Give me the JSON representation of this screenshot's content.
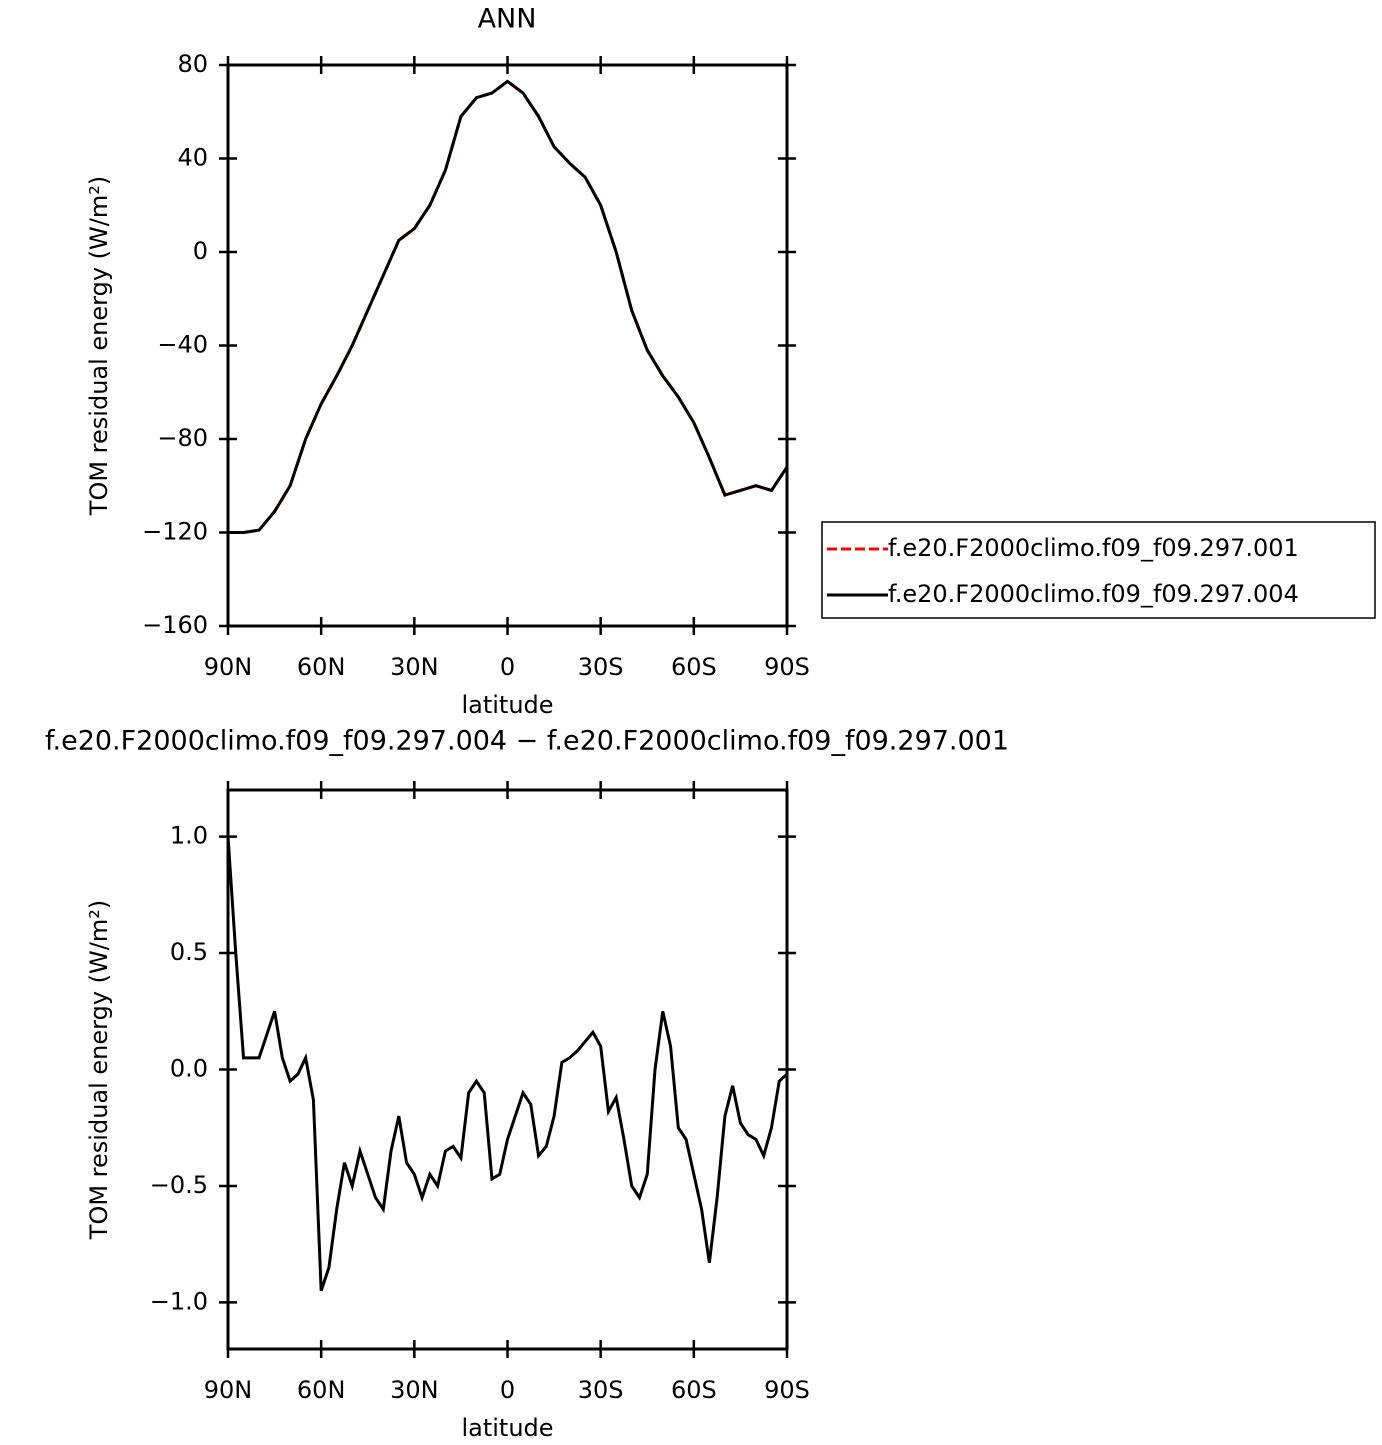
{
  "chart_data": [
    {
      "type": "line",
      "title": "ANN",
      "x_label": "latitude",
      "y_label": "TOM residual energy (W/m²)",
      "x": [
        90,
        85,
        80,
        75,
        70,
        65,
        60,
        55,
        50,
        45,
        40,
        35,
        30,
        25,
        20,
        15,
        10,
        5,
        0,
        -5,
        -10,
        -15,
        -20,
        -25,
        -30,
        -35,
        -40,
        -45,
        -50,
        -55,
        -60,
        -65,
        -70,
        -75,
        -80,
        -85,
        -90
      ],
      "series": [
        {
          "name": "f.e20.F2000climo.f09_f09.297.001",
          "color": "#ff0000",
          "dashed": true,
          "values": [
            -120,
            -120,
            -119,
            -111,
            -100,
            -80,
            -65,
            -53,
            -40,
            -25,
            -10,
            5,
            10,
            20,
            35,
            58,
            66,
            68,
            73,
            68,
            58,
            45,
            38,
            32,
            20,
            0,
            -25,
            -42,
            -53,
            -62,
            -73,
            -88,
            -104,
            -102,
            -100,
            -102,
            -92
          ]
        },
        {
          "name": "f.e20.F2000climo.f09_f09.297.004",
          "color": "#000000",
          "dashed": false,
          "values": [
            -120,
            -120,
            -119,
            -111,
            -100,
            -80,
            -65,
            -53,
            -40,
            -25,
            -10,
            5,
            10,
            20,
            35,
            58,
            66,
            68,
            73,
            68,
            58,
            45,
            38,
            32,
            20,
            0,
            -25,
            -42,
            -53,
            -62,
            -73,
            -88,
            -104,
            -102,
            -100,
            -102,
            -92
          ]
        }
      ],
      "xlim": [
        90,
        -90
      ],
      "xticks": [
        {
          "value": 90,
          "label": "90N"
        },
        {
          "value": 60,
          "label": "60N"
        },
        {
          "value": 30,
          "label": "30N"
        },
        0,
        {
          "value": -30,
          "label": "30S"
        },
        {
          "value": -60,
          "label": "60S"
        },
        {
          "value": -90,
          "label": "90S"
        }
      ],
      "ylim": [
        -160,
        80
      ],
      "yticks": [
        {
          "value": -160,
          "label": "−160"
        },
        {
          "value": -120,
          "label": "−120"
        },
        {
          "value": -80,
          "label": "−80"
        },
        {
          "value": -40,
          "label": "−40"
        },
        0,
        40,
        80
      ],
      "legend": "right"
    },
    {
      "type": "line",
      "title": "f.e20.F2000climo.f09_f09.297.004 − f.e20.F2000climo.f09_f09.297.001",
      "x_label": "latitude",
      "y_label": "TOM residual energy (W/m²)",
      "x": [
        90,
        87.5,
        85,
        82.5,
        80,
        77.5,
        75,
        72.5,
        70,
        67.5,
        65,
        62.5,
        60,
        57.5,
        55,
        52.5,
        50,
        47.5,
        45,
        42.5,
        40,
        37.5,
        35,
        32.5,
        30,
        27.5,
        25,
        22.5,
        20,
        17.5,
        15,
        12.5,
        10,
        7.5,
        5,
        2.5,
        0,
        -2.5,
        -5,
        -7.5,
        -10,
        -12.5,
        -15,
        -17.5,
        -20,
        -22.5,
        -25,
        -27.5,
        -30,
        -32.5,
        -35,
        -37.5,
        -40,
        -42.5,
        -45,
        -47.5,
        -50,
        -52.5,
        -55,
        -57.5,
        -60,
        -62.5,
        -65,
        -67.5,
        -70,
        -72.5,
        -75,
        -77.5,
        -80,
        -82.5,
        -85,
        -87.5,
        -90
      ],
      "series": [
        {
          "color": "#000000",
          "dashed": false,
          "values": [
            1.0,
            0.5,
            0.05,
            0.05,
            0.05,
            0.15,
            0.25,
            0.05,
            -0.05,
            -0.02,
            0.05,
            -0.13,
            -0.95,
            -0.85,
            -0.6,
            -0.4,
            -0.5,
            -0.35,
            -0.45,
            -0.55,
            -0.6,
            -0.35,
            -0.2,
            -0.4,
            -0.45,
            -0.55,
            -0.45,
            -0.5,
            -0.35,
            -0.33,
            -0.38,
            -0.1,
            -0.05,
            -0.1,
            -0.47,
            -0.45,
            -0.3,
            -0.2,
            -0.1,
            -0.15,
            -0.37,
            -0.33,
            -0.2,
            0.03,
            0.05,
            0.08,
            0.12,
            0.16,
            0.1,
            -0.18,
            -0.12,
            -0.3,
            -0.5,
            -0.55,
            -0.45,
            0.0,
            0.25,
            0.1,
            -0.25,
            -0.3,
            -0.45,
            -0.6,
            -0.83,
            -0.55,
            -0.2,
            -0.07,
            -0.23,
            -0.28,
            -0.3,
            -0.37,
            -0.25,
            -0.05,
            -0.02
          ]
        }
      ],
      "xlim": [
        90,
        -90
      ],
      "xticks": [
        {
          "value": 90,
          "label": "90N"
        },
        {
          "value": 60,
          "label": "60N"
        },
        {
          "value": 30,
          "label": "30N"
        },
        0,
        {
          "value": -30,
          "label": "30S"
        },
        {
          "value": -60,
          "label": "60S"
        },
        {
          "value": -90,
          "label": "90S"
        }
      ],
      "ylim": [
        -1.2,
        1.2
      ],
      "yticks": [
        {
          "value": -1.0,
          "label": "−1.0"
        },
        {
          "value": -0.5,
          "label": "−0.5"
        },
        {
          "value": 0.0,
          "label": "0.0"
        },
        {
          "value": 0.5,
          "label": "0.5"
        },
        {
          "value": 1.0,
          "label": "1.0"
        }
      ]
    }
  ]
}
